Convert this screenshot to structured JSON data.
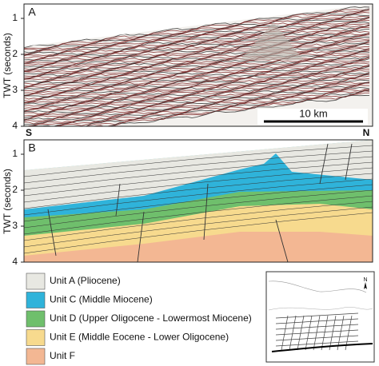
{
  "panel_a": {
    "label": "A",
    "y_axis_label": "TWT (seconds)",
    "yticks": [
      1,
      2,
      3,
      4
    ],
    "left_label": "S",
    "right_label": "N",
    "scale_bar": "10 km"
  },
  "panel_b": {
    "label": "B",
    "y_axis_label": "TWT (seconds)",
    "yticks": [
      1,
      2,
      3,
      4
    ]
  },
  "legend": {
    "items": [
      {
        "label": "Unit A (Pliocene)",
        "color": "#e8e8e2"
      },
      {
        "label": "Unit C (Middle Miocene)",
        "color": "#2fb3da"
      },
      {
        "label": "Unit D (Upper Oligocene - Lowermost Miocene)",
        "color": "#6fbf6c"
      },
      {
        "label": "Unit E (Middle Eocene - Lower Oligocene)",
        "color": "#f7da8e"
      },
      {
        "label": "Unit F",
        "color": "#f3b793"
      }
    ]
  },
  "map": {
    "north_label": "N"
  }
}
